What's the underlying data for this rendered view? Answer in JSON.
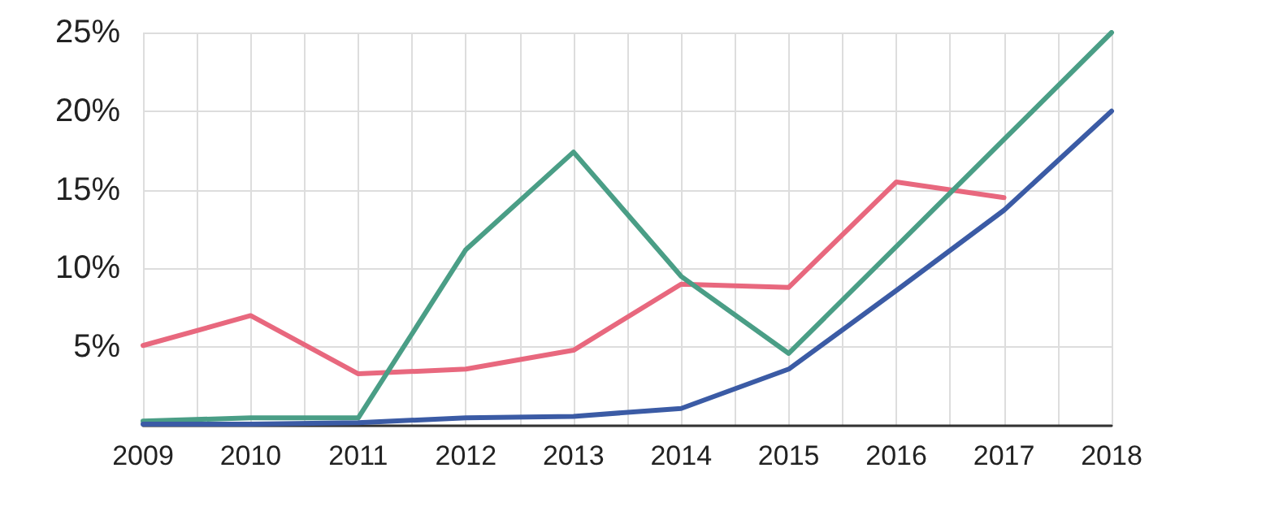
{
  "chart_data": {
    "type": "line",
    "x": [
      2009,
      2010,
      2011,
      2012,
      2013,
      2014,
      2015,
      2016,
      2017,
      2018
    ],
    "series": [
      {
        "color": "#e8687e",
        "values": [
          5.1,
          7.0,
          3.3,
          3.6,
          4.8,
          9.0,
          8.8,
          15.5,
          14.5,
          null
        ]
      },
      {
        "color": "#4a9e86",
        "values": [
          0.3,
          0.5,
          0.5,
          11.2,
          17.4,
          9.5,
          4.6,
          11.4,
          18.2,
          25
        ]
      },
      {
        "color": "#3b5ba5",
        "values": [
          0.1,
          0.1,
          0.2,
          0.5,
          0.6,
          1.1,
          3.6,
          8.6,
          13.7,
          20
        ]
      }
    ],
    "xlim": [
      2009,
      2018
    ],
    "xticks": [
      2009,
      {
        "value": 2009.5,
        "label": null
      },
      2010,
      {
        "value": 2010.5,
        "label": null
      },
      2011,
      {
        "value": 2011.5,
        "label": null
      },
      2012,
      {
        "value": 2012.5,
        "label": null
      },
      2013,
      {
        "value": 2013.5,
        "label": null
      },
      2014,
      {
        "value": 2014.5,
        "label": null
      },
      2015,
      {
        "value": 2015.5,
        "label": null
      },
      2016,
      {
        "value": 2016.5,
        "label": null
      },
      2017,
      {
        "value": 2017.5,
        "label": null
      },
      2018
    ],
    "ylim": [
      0,
      25
    ],
    "yticks": [
      {
        "value": 0,
        "label": null
      },
      {
        "value": 5,
        "label": "5%"
      },
      {
        "value": 10,
        "label": "10%"
      },
      {
        "value": 15,
        "label": "15%"
      },
      {
        "value": 20,
        "label": "20%"
      },
      {
        "value": 25,
        "label": "25%"
      }
    ],
    "grid": true,
    "marker": "none",
    "line_style": "solid"
  }
}
